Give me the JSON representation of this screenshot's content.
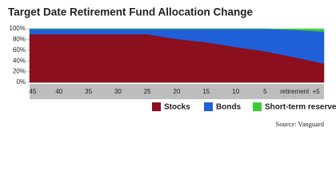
{
  "chart_data": {
    "type": "stacked-area",
    "title": "Target Date Retirement Fund Allocation Change",
    "categories": [
      "45",
      "40",
      "35",
      "30",
      "25",
      "20",
      "15",
      "10",
      "5",
      "retirement",
      "+5"
    ],
    "series": [
      {
        "name": "Stocks",
        "color": "#8c0f1e",
        "values": [
          90,
          90,
          90,
          90,
          90,
          81,
          75,
          66,
          58,
          47,
          35
        ]
      },
      {
        "name": "Bonds",
        "color": "#1f5fd8",
        "values": [
          10,
          10,
          10,
          10,
          10,
          19,
          25,
          34,
          42,
          51,
          60
        ]
      },
      {
        "name": "Short-term reserves",
        "color": "#3ecb3a",
        "values": [
          0,
          0,
          0,
          0,
          0,
          0,
          0,
          0,
          0,
          2,
          5
        ]
      }
    ],
    "ylim": [
      0,
      100
    ],
    "yticks": [
      {
        "value": 0,
        "label": "0%"
      },
      {
        "value": 20,
        "label": "20%"
      },
      {
        "value": 40,
        "label": "40%"
      },
      {
        "value": 60,
        "label": "60%"
      },
      {
        "value": 80,
        "label": "80%"
      },
      {
        "value": 100,
        "label": "100%"
      }
    ],
    "source": "Source: Vanguard"
  }
}
